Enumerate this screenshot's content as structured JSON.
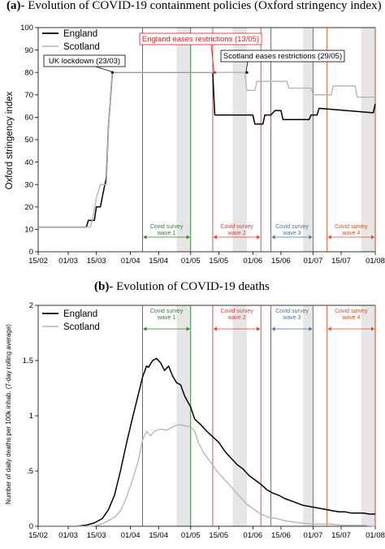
{
  "chart_data": [
    {
      "type": "line",
      "panel_letter": "(a)",
      "title": "- Evolution of COVID-19 containment policies (Oxford stringency index)",
      "ylabel": "Oxford stringency index",
      "xlabel": "",
      "ylim": [
        0,
        100
      ],
      "yticks": [
        "0",
        "10",
        "20",
        "30",
        "40",
        "50",
        "60",
        "70",
        "80",
        "90",
        "100"
      ],
      "x_range": [
        "2020-02-15",
        "2020-08-01"
      ],
      "xticks": [
        {
          "date": "2020-02-15",
          "label": "15/02"
        },
        {
          "date": "2020-03-01",
          "label": "01/03"
        },
        {
          "date": "2020-03-15",
          "label": "15/03"
        },
        {
          "date": "2020-04-01",
          "label": "01/04"
        },
        {
          "date": "2020-04-15",
          "label": "15/04"
        },
        {
          "date": "2020-05-01",
          "label": "01/05"
        },
        {
          "date": "2020-05-15",
          "label": "15/05"
        },
        {
          "date": "2020-06-01",
          "label": "01/06"
        },
        {
          "date": "2020-06-15",
          "label": "15/06"
        },
        {
          "date": "2020-07-01",
          "label": "01/07"
        },
        {
          "date": "2020-07-15",
          "label": "15/07"
        },
        {
          "date": "2020-08-01",
          "label": "01/08"
        }
      ],
      "legend": {
        "placement": "top-left"
      },
      "series": [
        {
          "name": "England",
          "color": "#000000",
          "points": [
            [
              "2020-02-15",
              11
            ],
            [
              "2020-03-10",
              11
            ],
            [
              "2020-03-11",
              14
            ],
            [
              "2020-03-14",
              14
            ],
            [
              "2020-03-15",
              20
            ],
            [
              "2020-03-17",
              20
            ],
            [
              "2020-03-19",
              29
            ],
            [
              "2020-03-20",
              33
            ],
            [
              "2020-03-21",
              56
            ],
            [
              "2020-03-23",
              80
            ],
            [
              "2020-05-12",
              80
            ],
            [
              "2020-05-13",
              61
            ],
            [
              "2020-06-01",
              61
            ],
            [
              "2020-06-02",
              57
            ],
            [
              "2020-06-06",
              57
            ],
            [
              "2020-06-07",
              61
            ],
            [
              "2020-06-10",
              61
            ],
            [
              "2020-06-12",
              63
            ],
            [
              "2020-06-15",
              63
            ],
            [
              "2020-06-16",
              59
            ],
            [
              "2020-06-29",
              59
            ],
            [
              "2020-06-30",
              61
            ],
            [
              "2020-07-03",
              61
            ],
            [
              "2020-07-04",
              64
            ],
            [
              "2020-07-31",
              62
            ],
            [
              "2020-08-01",
              66
            ]
          ]
        },
        {
          "name": "Scotland",
          "color": "#b3b3b3",
          "points": [
            [
              "2020-02-15",
              11
            ],
            [
              "2020-03-12",
              11
            ],
            [
              "2020-03-13",
              14
            ],
            [
              "2020-03-15",
              24
            ],
            [
              "2020-03-17",
              30
            ],
            [
              "2020-03-20",
              30
            ],
            [
              "2020-03-21",
              56
            ],
            [
              "2020-03-23",
              80
            ],
            [
              "2020-05-28",
              80
            ],
            [
              "2020-05-29",
              72
            ],
            [
              "2020-06-02",
              72
            ],
            [
              "2020-06-03",
              76
            ],
            [
              "2020-06-18",
              76
            ],
            [
              "2020-06-19",
              73
            ],
            [
              "2020-06-30",
              73
            ],
            [
              "2020-07-01",
              70
            ],
            [
              "2020-07-10",
              70
            ],
            [
              "2020-07-11",
              74
            ],
            [
              "2020-07-22",
              74
            ],
            [
              "2020-07-23",
              69
            ],
            [
              "2020-08-01",
              69
            ]
          ]
        }
      ],
      "annotations": [
        {
          "text": "UK lockdown (23/03)",
          "date": "2020-03-23",
          "value": 80,
          "color": "#000000"
        },
        {
          "text": "England eases restrictions  (13/05)",
          "date": "2020-05-13",
          "value": 80,
          "color": "#e21b1b"
        },
        {
          "text": "Scotland eases restrictions (29/05)",
          "date": "2020-05-29",
          "value": 80,
          "color": "#000000"
        }
      ],
      "survey_waves": [
        {
          "label": [
            "Covid survey",
            "wave 1"
          ],
          "start": "2020-04-07",
          "end": "2020-05-01",
          "color": "#2e7d32"
        },
        {
          "label": [
            "Covid survey",
            "wave 2"
          ],
          "start": "2020-05-12",
          "end": "2020-06-05",
          "color": "#e53935"
        },
        {
          "label": [
            "Covid survey",
            "wave 3"
          ],
          "start": "2020-06-10",
          "end": "2020-07-01",
          "color": "#4a6fa5"
        },
        {
          "label": [
            "Covid survey",
            "wave 4"
          ],
          "start": "2020-07-08",
          "end": "2020-08-01",
          "color": "#e64a19"
        }
      ],
      "grey_weekend_bands": [
        [
          "2020-04-24",
          "2020-05-01"
        ],
        [
          "2020-05-22",
          "2020-05-29"
        ],
        [
          "2020-06-26",
          "2020-07-01"
        ],
        [
          "2020-07-25",
          "2020-08-01"
        ]
      ]
    },
    {
      "type": "line",
      "panel_letter": "(b)",
      "title": "- Evolution of COVID-19 deaths",
      "ylabel": "Number of daily deaths per 100k inhab. (7-day rolling average)",
      "xlabel": "",
      "ylim": [
        0,
        2
      ],
      "yticks": [
        "0",
        ".5",
        "1",
        "1.5",
        "2"
      ],
      "x_range": [
        "2020-02-15",
        "2020-08-01"
      ],
      "xticks": [
        {
          "date": "2020-02-15",
          "label": "15/02"
        },
        {
          "date": "2020-03-01",
          "label": "01/03"
        },
        {
          "date": "2020-03-15",
          "label": "15/03"
        },
        {
          "date": "2020-04-01",
          "label": "01/04"
        },
        {
          "date": "2020-04-15",
          "label": "15/04"
        },
        {
          "date": "2020-05-01",
          "label": "01/05"
        },
        {
          "date": "2020-05-15",
          "label": "15/05"
        },
        {
          "date": "2020-06-01",
          "label": "01/06"
        },
        {
          "date": "2020-06-15",
          "label": "15/06"
        },
        {
          "date": "2020-07-01",
          "label": "01/07"
        },
        {
          "date": "2020-07-15",
          "label": "15/07"
        },
        {
          "date": "2020-08-01",
          "label": "01/08"
        }
      ],
      "legend": {
        "placement": "top-left"
      },
      "series": [
        {
          "name": "England",
          "color": "#000000",
          "points": [
            [
              "2020-02-15",
              0
            ],
            [
              "2020-03-05",
              0
            ],
            [
              "2020-03-10",
              0.01
            ],
            [
              "2020-03-14",
              0.03
            ],
            [
              "2020-03-18",
              0.07
            ],
            [
              "2020-03-21",
              0.15
            ],
            [
              "2020-03-24",
              0.28
            ],
            [
              "2020-03-27",
              0.5
            ],
            [
              "2020-03-30",
              0.75
            ],
            [
              "2020-04-02",
              0.98
            ],
            [
              "2020-04-05",
              1.2
            ],
            [
              "2020-04-07",
              1.35
            ],
            [
              "2020-04-09",
              1.45
            ],
            [
              "2020-04-10",
              1.44
            ],
            [
              "2020-04-12",
              1.5
            ],
            [
              "2020-04-14",
              1.52
            ],
            [
              "2020-04-16",
              1.48
            ],
            [
              "2020-04-18",
              1.41
            ],
            [
              "2020-04-20",
              1.45
            ],
            [
              "2020-04-22",
              1.36
            ],
            [
              "2020-04-24",
              1.3
            ],
            [
              "2020-04-26",
              1.28
            ],
            [
              "2020-04-28",
              1.18
            ],
            [
              "2020-05-01",
              1.08
            ],
            [
              "2020-05-03",
              0.97
            ],
            [
              "2020-05-06",
              0.92
            ],
            [
              "2020-05-09",
              0.86
            ],
            [
              "2020-05-12",
              0.81
            ],
            [
              "2020-05-15",
              0.76
            ],
            [
              "2020-05-18",
              0.68
            ],
            [
              "2020-05-21",
              0.62
            ],
            [
              "2020-05-24",
              0.56
            ],
            [
              "2020-05-27",
              0.52
            ],
            [
              "2020-05-30",
              0.46
            ],
            [
              "2020-06-02",
              0.42
            ],
            [
              "2020-06-05",
              0.38
            ],
            [
              "2020-06-08",
              0.33
            ],
            [
              "2020-06-11",
              0.3
            ],
            [
              "2020-06-14",
              0.28
            ],
            [
              "2020-06-17",
              0.25
            ],
            [
              "2020-06-20",
              0.23
            ],
            [
              "2020-06-23",
              0.21
            ],
            [
              "2020-06-26",
              0.19
            ],
            [
              "2020-06-29",
              0.18
            ],
            [
              "2020-07-02",
              0.17
            ],
            [
              "2020-07-05",
              0.16
            ],
            [
              "2020-07-08",
              0.15
            ],
            [
              "2020-07-11",
              0.14
            ],
            [
              "2020-07-14",
              0.13
            ],
            [
              "2020-07-17",
              0.13
            ],
            [
              "2020-07-20",
              0.12
            ],
            [
              "2020-07-23",
              0.12
            ],
            [
              "2020-07-26",
              0.12
            ],
            [
              "2020-07-29",
              0.11
            ],
            [
              "2020-08-01",
              0.11
            ]
          ]
        },
        {
          "name": "Scotland",
          "color": "#b3b3b3",
          "points": [
            [
              "2020-02-15",
              0
            ],
            [
              "2020-03-12",
              0
            ],
            [
              "2020-03-16",
              0.01
            ],
            [
              "2020-03-20",
              0.04
            ],
            [
              "2020-03-24",
              0.08
            ],
            [
              "2020-03-27",
              0.14
            ],
            [
              "2020-03-30",
              0.26
            ],
            [
              "2020-04-02",
              0.42
            ],
            [
              "2020-04-05",
              0.6
            ],
            [
              "2020-04-07",
              0.78
            ],
            [
              "2020-04-09",
              0.86
            ],
            [
              "2020-04-11",
              0.82
            ],
            [
              "2020-04-13",
              0.86
            ],
            [
              "2020-04-16",
              0.88
            ],
            [
              "2020-04-19",
              0.87
            ],
            [
              "2020-04-22",
              0.9
            ],
            [
              "2020-04-25",
              0.92
            ],
            [
              "2020-04-28",
              0.91
            ],
            [
              "2020-05-01",
              0.9
            ],
            [
              "2020-05-03",
              0.86
            ],
            [
              "2020-05-05",
              0.75
            ],
            [
              "2020-05-08",
              0.65
            ],
            [
              "2020-05-11",
              0.58
            ],
            [
              "2020-05-14",
              0.5
            ],
            [
              "2020-05-17",
              0.44
            ],
            [
              "2020-05-20",
              0.38
            ],
            [
              "2020-05-23",
              0.32
            ],
            [
              "2020-05-26",
              0.26
            ],
            [
              "2020-05-29",
              0.2
            ],
            [
              "2020-06-01",
              0.16
            ],
            [
              "2020-06-05",
              0.11
            ],
            [
              "2020-06-09",
              0.08
            ],
            [
              "2020-06-13",
              0.07
            ],
            [
              "2020-06-17",
              0.05
            ],
            [
              "2020-06-21",
              0.04
            ],
            [
              "2020-06-25",
              0.03
            ],
            [
              "2020-06-30",
              0.02
            ],
            [
              "2020-07-05",
              0.02
            ],
            [
              "2020-07-10",
              0.02
            ],
            [
              "2020-07-15",
              0.01
            ],
            [
              "2020-07-20",
              0.01
            ],
            [
              "2020-07-25",
              0.01
            ],
            [
              "2020-08-01",
              0.0
            ]
          ]
        }
      ],
      "survey_waves": [
        {
          "label": [
            "Covid survey",
            "wave 1"
          ],
          "start": "2020-04-07",
          "end": "2020-05-01",
          "color": "#2e7d32"
        },
        {
          "label": [
            "Covid survey",
            "wave 2"
          ],
          "start": "2020-05-12",
          "end": "2020-06-05",
          "color": "#e53935"
        },
        {
          "label": [
            "Covid survey",
            "wave 3"
          ],
          "start": "2020-06-10",
          "end": "2020-07-01",
          "color": "#4a6fa5"
        },
        {
          "label": [
            "Covid survey",
            "wave 4"
          ],
          "start": "2020-07-08",
          "end": "2020-08-01",
          "color": "#e64a19"
        }
      ],
      "grey_weekend_bands": [
        [
          "2020-04-24",
          "2020-05-01"
        ],
        [
          "2020-05-22",
          "2020-05-29"
        ],
        [
          "2020-06-26",
          "2020-07-01"
        ],
        [
          "2020-07-25",
          "2020-08-01"
        ]
      ]
    }
  ]
}
